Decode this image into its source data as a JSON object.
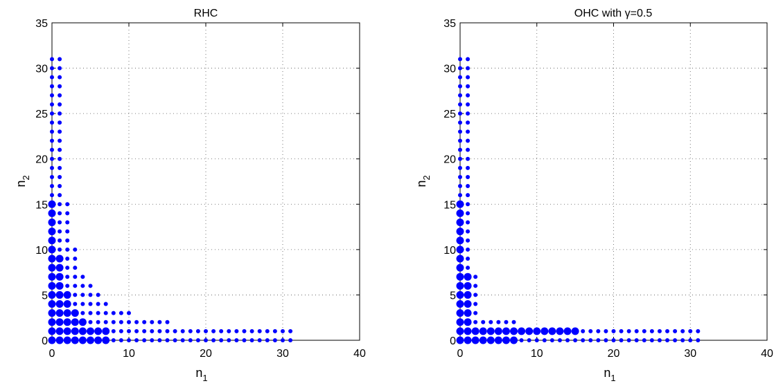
{
  "chart_data": [
    {
      "type": "scatter",
      "title": "RHC",
      "xlabel": "n",
      "xlabel_subscript": "1",
      "ylabel": "n",
      "ylabel_subscript": "2",
      "xlim": [
        0,
        40
      ],
      "ylim": [
        0,
        35
      ],
      "xticks": [
        "0",
        "10",
        "20",
        "30",
        "40"
      ],
      "yticks": [
        "0",
        "5",
        "10",
        "15",
        "20",
        "25",
        "30",
        "35"
      ],
      "grid": true,
      "marker_color": "#0000ff",
      "rows": [
        {
          "y": 0,
          "x_max": 31,
          "big_until": 7
        },
        {
          "y": 1,
          "x_max": 31,
          "big_until": 7
        },
        {
          "y": 2,
          "x_max": 15,
          "big_until": 4
        },
        {
          "y": 3,
          "x_max": 10,
          "big_until": 3
        },
        {
          "y": 4,
          "x_max": 7,
          "big_until": 2
        },
        {
          "y": 5,
          "x_max": 6,
          "big_until": 2
        },
        {
          "y": 6,
          "x_max": 5,
          "big_until": 1
        },
        {
          "y": 7,
          "x_max": 4,
          "big_until": 1
        },
        {
          "y": 8,
          "x_max": 3,
          "big_until": 1
        },
        {
          "y": 9,
          "x_max": 3,
          "big_until": 1
        },
        {
          "y": 10,
          "x_max": 3,
          "big_until": 0
        },
        {
          "y": 11,
          "x_max": 2,
          "big_until": 0
        },
        {
          "y": 12,
          "x_max": 2,
          "big_until": 0
        },
        {
          "y": 13,
          "x_max": 2,
          "big_until": 0
        },
        {
          "y": 14,
          "x_max": 2,
          "big_until": 0
        },
        {
          "y": 15,
          "x_max": 2,
          "big_until": 0
        }
      ],
      "column_top": 31
    },
    {
      "type": "scatter",
      "title": "OHC with γ=0.5",
      "xlabel": "n",
      "xlabel_subscript": "1",
      "ylabel": "n",
      "ylabel_subscript": "2",
      "xlim": [
        0,
        40
      ],
      "ylim": [
        0,
        35
      ],
      "xticks": [
        "0",
        "10",
        "20",
        "30",
        "40"
      ],
      "yticks": [
        "0",
        "5",
        "10",
        "15",
        "20",
        "25",
        "30",
        "35"
      ],
      "grid": true,
      "marker_color": "#0000ff",
      "rows": [
        {
          "y": 0,
          "x_max": 31,
          "big_until": 7
        },
        {
          "y": 1,
          "x_max": 31,
          "big_until": 15
        },
        {
          "y": 2,
          "x_max": 7,
          "big_until": 1
        },
        {
          "y": 3,
          "x_max": 2,
          "big_until": 1
        },
        {
          "y": 4,
          "x_max": 2,
          "big_until": 1
        },
        {
          "y": 5,
          "x_max": 2,
          "big_until": 1
        },
        {
          "y": 6,
          "x_max": 2,
          "big_until": 1
        },
        {
          "y": 7,
          "x_max": 2,
          "big_until": 1
        },
        {
          "y": 8,
          "x_max": 1,
          "big_until": 0
        },
        {
          "y": 9,
          "x_max": 1,
          "big_until": 0
        },
        {
          "y": 10,
          "x_max": 1,
          "big_until": 0
        },
        {
          "y": 11,
          "x_max": 1,
          "big_until": 0
        },
        {
          "y": 12,
          "x_max": 1,
          "big_until": 0
        },
        {
          "y": 13,
          "x_max": 1,
          "big_until": 0
        },
        {
          "y": 14,
          "x_max": 1,
          "big_until": 0
        },
        {
          "y": 15,
          "x_max": 1,
          "big_until": 0
        }
      ],
      "column_top": 31
    }
  ]
}
